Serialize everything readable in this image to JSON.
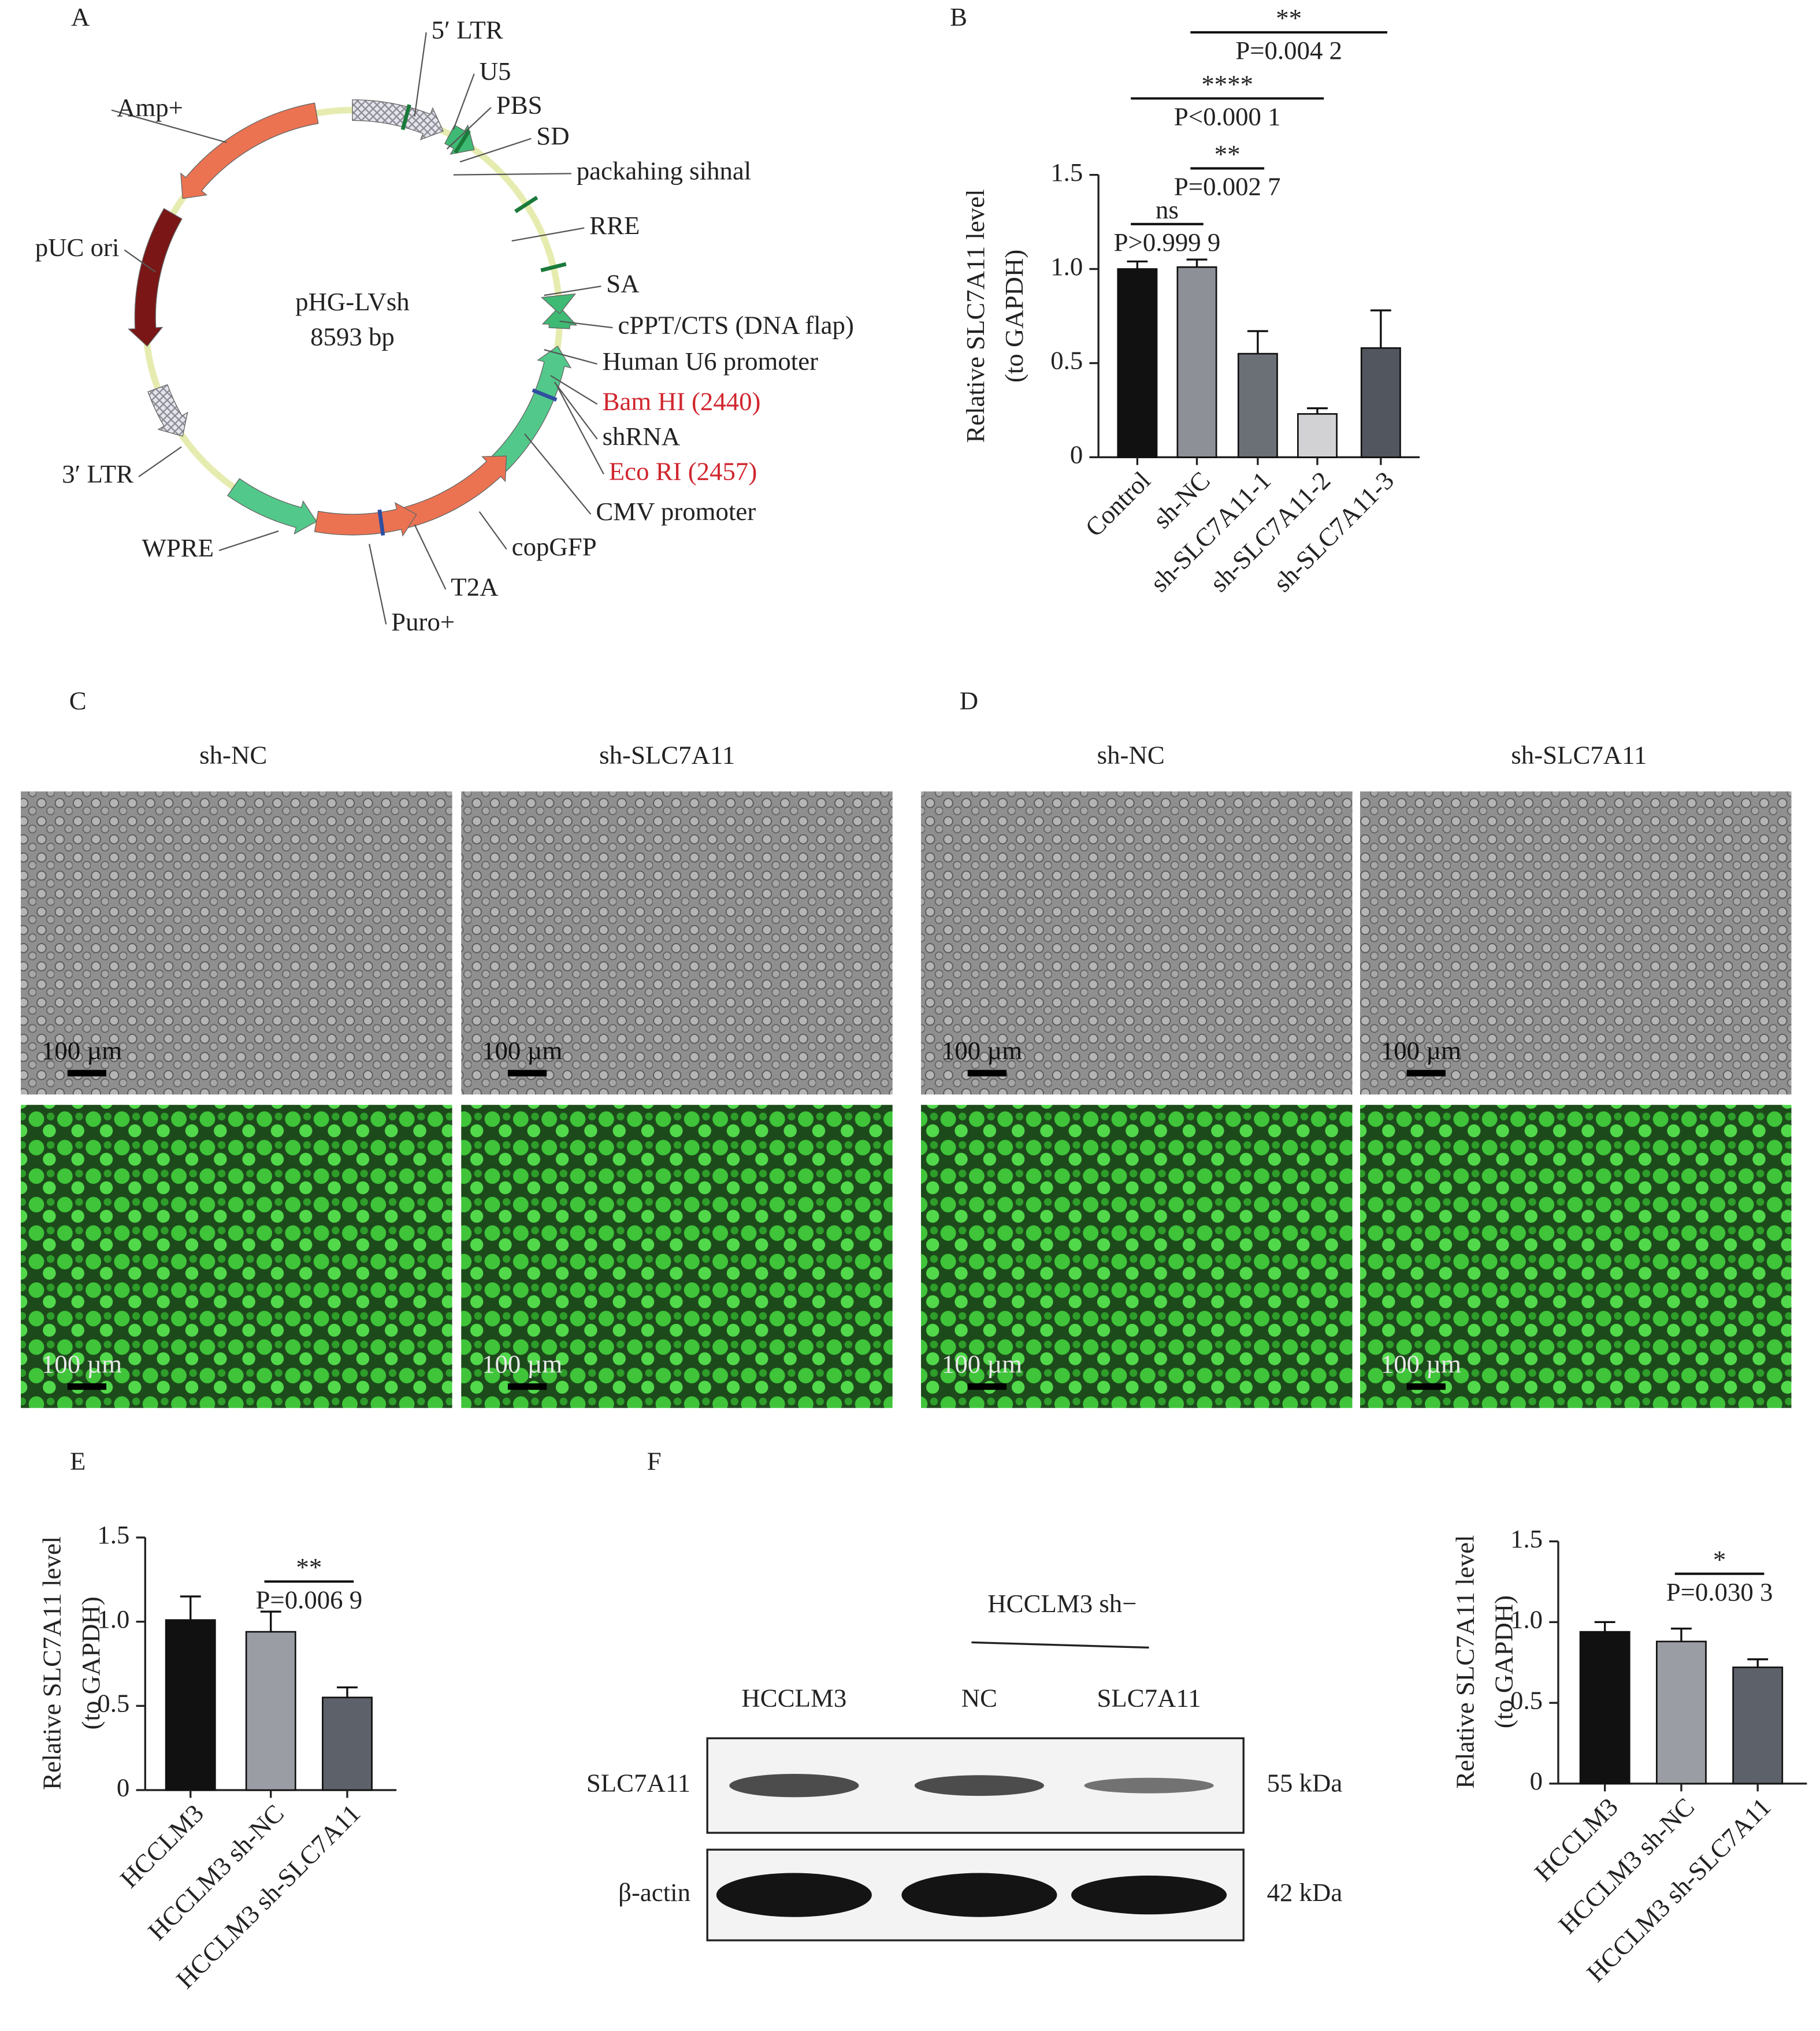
{
  "panel_labels": [
    "A",
    "B",
    "C",
    "D",
    "E",
    "F"
  ],
  "plasmid": {
    "name": "pHG-LVsh",
    "size": "8593 bp",
    "features": [
      "5′ LTR",
      "U5",
      "PBS",
      "SD",
      "packahing sihnal",
      "RRE",
      "SA",
      "cPPT/CTS (DNA flap)",
      "Human U6 promoter",
      "Bam HI (2440)",
      "shRNA",
      "Eco RI (2457)",
      "CMV promoter",
      "copGFP",
      "T2A",
      "Puro+",
      "WPRE",
      "3′ LTR",
      "pUC ori",
      "Amp+"
    ]
  },
  "micrographs": {
    "columns": [
      "sh-NC",
      "sh-SLC7A11",
      "sh-NC",
      "sh-SLC7A11"
    ],
    "scale_bar": "100 µm"
  },
  "western": {
    "group_label": "HCCLM3 sh−",
    "lanes": [
      "HCCLM3",
      "NC",
      "SLC7A11"
    ],
    "rows": [
      {
        "name": "SLC7A11",
        "size": "55 kDa"
      },
      {
        "name": "β-actin",
        "size": "42 kDa"
      }
    ]
  },
  "chart_data": [
    {
      "type": "bar",
      "ylabel": [
        "Relative SLC7A11 level",
        "(to GAPDH)"
      ],
      "categories": [
        "Control",
        "sh-NC",
        "sh-SLC7A11-1",
        "sh-SLC7A11-2",
        "sh-SLC7A11-3"
      ],
      "values": [
        1.0,
        1.01,
        0.55,
        0.23,
        0.58
      ],
      "errors": [
        0.04,
        0.04,
        0.12,
        0.03,
        0.2
      ],
      "colors": [
        "#111111",
        "#8e9097",
        "#6b6f76",
        "#d2d2d5",
        "#52565e"
      ],
      "ylim": [
        0,
        1.5
      ],
      "yticks": [
        0,
        0.5,
        {
          "value": 1,
          "label": "1.0"
        },
        1.5
      ],
      "comparisons": [
        {
          "groups": [
            0,
            1
          ],
          "label": "ns",
          "p": "P>0.999 9"
        },
        {
          "groups": [
            1,
            2
          ],
          "label": "**",
          "p": "P=0.002 7"
        },
        {
          "groups": [
            0,
            3
          ],
          "label": "****",
          "p": "P<0.000 1"
        },
        {
          "groups": [
            1,
            4
          ],
          "label": "**",
          "p": "P=0.004 2"
        }
      ]
    },
    {
      "type": "bar",
      "ylabel": [
        "Relative SLC7A11 level",
        "(to GAPDH)"
      ],
      "categories": [
        "HCCLM3",
        "HCCLM3 sh-NC",
        "HCCLM3 sh-SLC7A11"
      ],
      "values": [
        1.01,
        0.94,
        0.55
      ],
      "errors": [
        0.14,
        0.12,
        0.06
      ],
      "colors": [
        "#111111",
        "#9b9da4",
        "#5d6169"
      ],
      "ylim": [
        0,
        1.5
      ],
      "yticks": [
        0,
        0.5,
        {
          "value": 1,
          "label": "1.0"
        },
        1.5
      ],
      "comparisons": [
        {
          "groups": [
            1,
            2
          ],
          "label": "**",
          "p": "P=0.006 9"
        }
      ]
    },
    {
      "type": "bar",
      "ylabel": [
        "Relative SLC7A11 level",
        "(to GAPDH)"
      ],
      "categories": [
        "HCCLM3",
        "HCCLM3 sh-NC",
        "HCCLM3 sh-SLC7A11"
      ],
      "values": [
        0.94,
        0.88,
        0.72
      ],
      "errors": [
        0.06,
        0.08,
        0.05
      ],
      "colors": [
        "#111111",
        "#9b9da4",
        "#5d6169"
      ],
      "ylim": [
        0,
        1.5
      ],
      "yticks": [
        0,
        0.5,
        {
          "value": 1,
          "label": "1.0"
        },
        1.5
      ],
      "comparisons": [
        {
          "groups": [
            1,
            2
          ],
          "label": "*",
          "p": "P=0.030 3"
        }
      ]
    }
  ]
}
